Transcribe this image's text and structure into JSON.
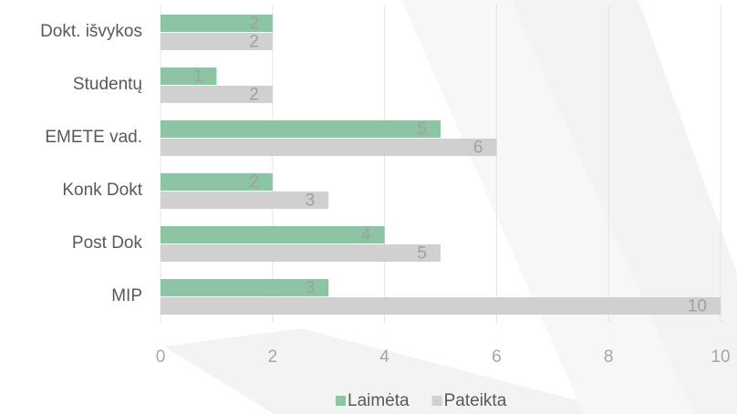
{
  "chart_data": {
    "type": "barh",
    "categories": [
      "Dokt. išvykos",
      "Studentų",
      "EMETE vad.",
      "Konk Dokt",
      "Post Dok",
      "MIP"
    ],
    "series": [
      {
        "name": "Laimėta",
        "color": "#8cc4a4",
        "values": [
          2,
          1,
          5,
          2,
          4,
          3
        ]
      },
      {
        "name": "Pateikta",
        "color": "#d0d0d0",
        "values": [
          2,
          2,
          6,
          3,
          5,
          10
        ]
      }
    ],
    "xlim": [
      0,
      10
    ],
    "xticks": [
      0,
      2,
      4,
      6,
      8,
      10
    ],
    "grid": true,
    "legend": "bottom"
  }
}
